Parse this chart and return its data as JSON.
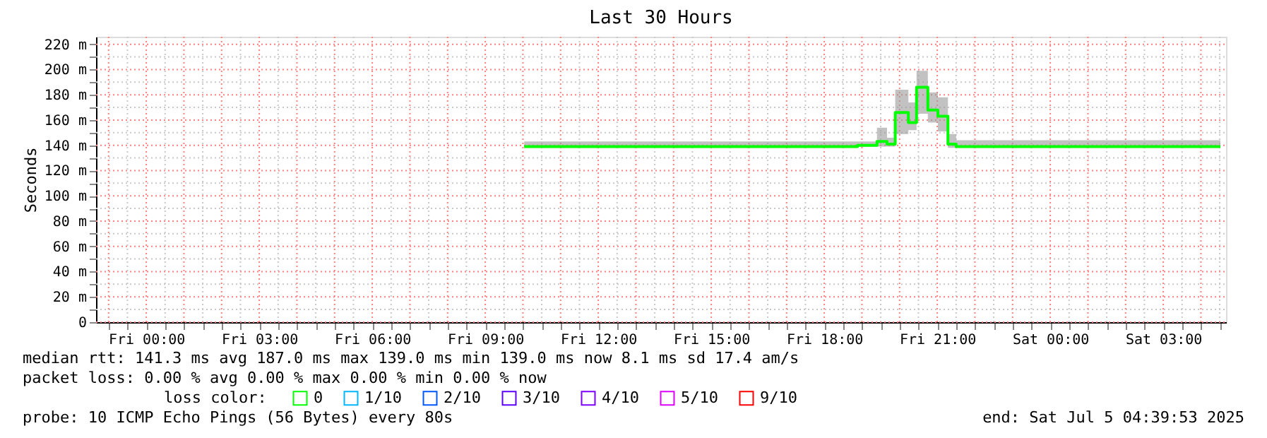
{
  "chart_data": {
    "type": "step",
    "title": "Last 30 Hours",
    "ylabel": "Seconds",
    "legend_title": "loss color:",
    "legend": "bottom",
    "grid": true,
    "x": [
      "2025-07-04T10:02",
      "2025-07-04T18:53",
      "2025-07-04T19:24",
      "2025-07-04T19:40",
      "2025-07-04T19:53",
      "2025-07-04T20:14",
      "2025-07-04T20:27",
      "2025-07-04T20:45",
      "2025-07-04T21:01",
      "2025-07-04T21:17",
      "2025-07-04T21:30",
      "2025-07-05T04:31"
    ],
    "series": [
      {
        "name": "0",
        "color": "#00ff00",
        "values": [
          139,
          140,
          143,
          141,
          166,
          158,
          186,
          168,
          163,
          141,
          139,
          139
        ],
        "lower": [
          138,
          139,
          139,
          139,
          149,
          152,
          165,
          158,
          151,
          138,
          138,
          138
        ],
        "upper": [
          143,
          143,
          154,
          146,
          184,
          174,
          199,
          182,
          178,
          149,
          144,
          142
        ]
      },
      {
        "name": "1/10",
        "color": "#00b8ff",
        "values": [
          null,
          null,
          null,
          null,
          null,
          null,
          null,
          null,
          null,
          null,
          null,
          null
        ]
      },
      {
        "name": "2/10",
        "color": "#0059ff",
        "values": [
          null,
          null,
          null,
          null,
          null,
          null,
          null,
          null,
          null,
          null,
          null,
          null
        ]
      },
      {
        "name": "3/10",
        "color": "#5e00ff",
        "values": [
          null,
          null,
          null,
          null,
          null,
          null,
          null,
          null,
          null,
          null,
          null,
          null
        ]
      },
      {
        "name": "4/10",
        "color": "#7e00ff",
        "values": [
          null,
          null,
          null,
          null,
          null,
          null,
          null,
          null,
          null,
          null,
          null,
          null
        ]
      },
      {
        "name": "5/10",
        "color": "#dd00ff",
        "values": [
          null,
          null,
          null,
          null,
          null,
          null,
          null,
          null,
          null,
          null,
          null,
          null
        ]
      },
      {
        "name": "9/10",
        "color": "#ff0000",
        "values": [
          null,
          null,
          null,
          null,
          null,
          null,
          null,
          null,
          null,
          null,
          null,
          null
        ]
      }
    ],
    "xlim": [
      "2025-07-03T22:40",
      "2025-07-05T04:40"
    ],
    "xticks": [
      {
        "value": "2025-07-03T23:00",
        "label": null
      },
      {
        "value": "2025-07-03T23:30",
        "label": null
      },
      {
        "value": "2025-07-04T00:00",
        "label": "Fri 00:00"
      },
      {
        "value": "2025-07-04T00:30",
        "label": null
      },
      {
        "value": "2025-07-04T01:00",
        "label": null
      },
      {
        "value": "2025-07-04T01:30",
        "label": null
      },
      {
        "value": "2025-07-04T02:00",
        "label": null
      },
      {
        "value": "2025-07-04T02:30",
        "label": null
      },
      {
        "value": "2025-07-04T03:00",
        "label": "Fri 03:00"
      },
      {
        "value": "2025-07-04T03:30",
        "label": null
      },
      {
        "value": "2025-07-04T04:00",
        "label": null
      },
      {
        "value": "2025-07-04T04:30",
        "label": null
      },
      {
        "value": "2025-07-04T05:00",
        "label": null
      },
      {
        "value": "2025-07-04T05:30",
        "label": null
      },
      {
        "value": "2025-07-04T06:00",
        "label": "Fri 06:00"
      },
      {
        "value": "2025-07-04T06:30",
        "label": null
      },
      {
        "value": "2025-07-04T07:00",
        "label": null
      },
      {
        "value": "2025-07-04T07:30",
        "label": null
      },
      {
        "value": "2025-07-04T08:00",
        "label": null
      },
      {
        "value": "2025-07-04T08:30",
        "label": null
      },
      {
        "value": "2025-07-04T09:00",
        "label": "Fri 09:00"
      },
      {
        "value": "2025-07-04T09:30",
        "label": null
      },
      {
        "value": "2025-07-04T10:00",
        "label": null
      },
      {
        "value": "2025-07-04T10:30",
        "label": null
      },
      {
        "value": "2025-07-04T11:00",
        "label": null
      },
      {
        "value": "2025-07-04T11:30",
        "label": null
      },
      {
        "value": "2025-07-04T12:00",
        "label": "Fri 12:00"
      },
      {
        "value": "2025-07-04T12:30",
        "label": null
      },
      {
        "value": "2025-07-04T13:00",
        "label": null
      },
      {
        "value": "2025-07-04T13:30",
        "label": null
      },
      {
        "value": "2025-07-04T14:00",
        "label": null
      },
      {
        "value": "2025-07-04T14:30",
        "label": null
      },
      {
        "value": "2025-07-04T15:00",
        "label": "Fri 15:00"
      },
      {
        "value": "2025-07-04T15:30",
        "label": null
      },
      {
        "value": "2025-07-04T16:00",
        "label": null
      },
      {
        "value": "2025-07-04T16:30",
        "label": null
      },
      {
        "value": "2025-07-04T17:00",
        "label": null
      },
      {
        "value": "2025-07-04T17:30",
        "label": null
      },
      {
        "value": "2025-07-04T18:00",
        "label": "Fri 18:00"
      },
      {
        "value": "2025-07-04T18:30",
        "label": null
      },
      {
        "value": "2025-07-04T19:00",
        "label": null
      },
      {
        "value": "2025-07-04T19:30",
        "label": null
      },
      {
        "value": "2025-07-04T20:00",
        "label": null
      },
      {
        "value": "2025-07-04T20:30",
        "label": null
      },
      {
        "value": "2025-07-04T21:00",
        "label": "Fri 21:00"
      },
      {
        "value": "2025-07-04T21:30",
        "label": null
      },
      {
        "value": "2025-07-04T22:00",
        "label": null
      },
      {
        "value": "2025-07-04T22:30",
        "label": null
      },
      {
        "value": "2025-07-04T23:00",
        "label": null
      },
      {
        "value": "2025-07-04T23:30",
        "label": null
      },
      {
        "value": "2025-07-05T00:00",
        "label": "Sat 00:00"
      },
      {
        "value": "2025-07-05T00:30",
        "label": null
      },
      {
        "value": "2025-07-05T01:00",
        "label": null
      },
      {
        "value": "2025-07-05T01:30",
        "label": null
      },
      {
        "value": "2025-07-05T02:00",
        "label": null
      },
      {
        "value": "2025-07-05T02:30",
        "label": null
      },
      {
        "value": "2025-07-05T03:00",
        "label": "Sat 03:00"
      },
      {
        "value": "2025-07-05T03:30",
        "label": null
      },
      {
        "value": "2025-07-05T04:00",
        "label": null
      },
      {
        "value": "2025-07-05T04:30",
        "label": null
      }
    ],
    "ylim": [
      0,
      226
    ],
    "yticks": [
      0,
      {
        "value": 10,
        "label": null
      },
      {
        "value": 20,
        "label": "20 m"
      },
      {
        "value": 30,
        "label": null
      },
      {
        "value": 40,
        "label": "40 m"
      },
      {
        "value": 50,
        "label": null
      },
      {
        "value": 60,
        "label": "60 m"
      },
      {
        "value": 70,
        "label": null
      },
      {
        "value": 80,
        "label": "80 m"
      },
      {
        "value": 90,
        "label": null
      },
      {
        "value": 100,
        "label": "100 m"
      },
      {
        "value": 110,
        "label": null
      },
      {
        "value": 120,
        "label": "120 m"
      },
      {
        "value": 130,
        "label": null
      },
      {
        "value": 140,
        "label": "140 m"
      },
      {
        "value": 150,
        "label": null
      },
      {
        "value": 160,
        "label": "160 m"
      },
      {
        "value": 170,
        "label": null
      },
      {
        "value": 180,
        "label": "180 m"
      },
      {
        "value": 190,
        "label": null
      },
      {
        "value": 200,
        "label": "200 m"
      },
      {
        "value": 210,
        "label": null
      },
      {
        "value": 220,
        "label": "220 m"
      }
    ],
    "annotations": [
      "median rtt:  141.3 ms avg  187.0 ms max  139.0 ms min  139.0 ms now  8.1 ms sd  17.4   am/s",
      "packet loss: 0.00 % avg  0.00 % max  0.00 % min  0.00 % now",
      "probe:       10 ICMP Echo Pings (56 Bytes) every 80s",
      "end: Sat Jul  5 04:39:53 2025"
    ]
  }
}
